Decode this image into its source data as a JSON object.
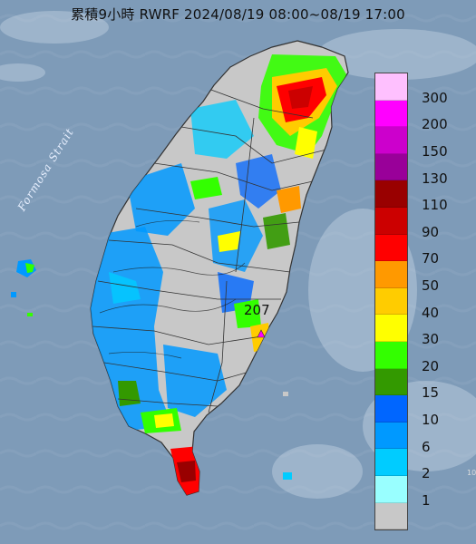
{
  "title": "累積9小時 RWRF 2024/08/19 08:00~08/19 17:00",
  "strait_label": "Formosa Strait",
  "max_marker": "207",
  "legend": {
    "labels": [
      "300",
      "200",
      "150",
      "130",
      "110",
      "90",
      "70",
      "50",
      "40",
      "30",
      "20",
      "15",
      "10",
      "6",
      "2",
      "1"
    ],
    "colors": [
      "#fec0fe",
      "#ff00ff",
      "#cc00cc",
      "#990099",
      "#990000",
      "#cc0000",
      "#ff0000",
      "#ff9900",
      "#ffcc00",
      "#ffff00",
      "#33ff00",
      "#339900",
      "#0066ff",
      "#0099ff",
      "#00ccff",
      "#99ffff",
      "#c8c8c8"
    ]
  },
  "colors": {
    "sea": "#7e9bb8",
    "land_gray": "#c8c8c8",
    "border": "#333333"
  }
}
